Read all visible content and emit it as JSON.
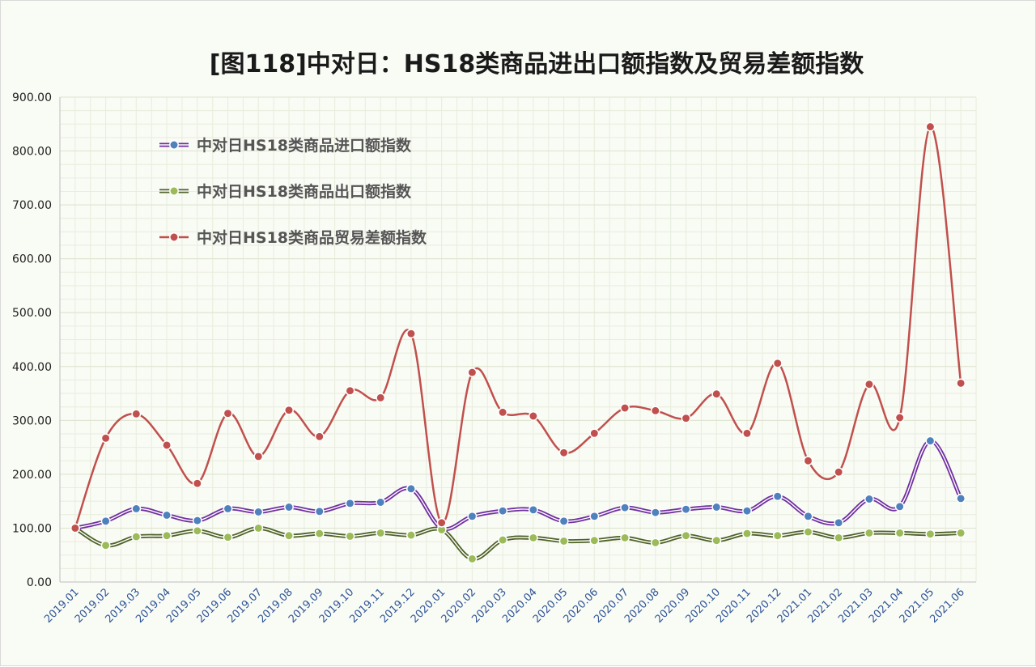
{
  "chart_data": {
    "type": "line",
    "title": "[图118]中对日：HS18类商品进出口额指数及贸易差额指数",
    "xlabel": "",
    "ylabel": "",
    "ylim": [
      0,
      900
    ],
    "yticks": [
      "0.00",
      "100.00",
      "200.00",
      "300.00",
      "400.00",
      "500.00",
      "600.00",
      "700.00",
      "800.00",
      "900.00"
    ],
    "grid": true,
    "legend_position": "top-left",
    "categories": [
      "2019.01",
      "2019.02",
      "2019.03",
      "2019.04",
      "2019.05",
      "2019.06",
      "2019.07",
      "2019.08",
      "2019.09",
      "2019.10",
      "2019.11",
      "2019.12",
      "2020.01",
      "2020.02",
      "2020.03",
      "2020.04",
      "2020.05",
      "2020.06",
      "2020.07",
      "2020.08",
      "2020.09",
      "2020.10",
      "2020.11",
      "2020.12",
      "2021.01",
      "2021.02",
      "2021.03",
      "2021.04",
      "2021.05",
      "2021.06"
    ],
    "series": [
      {
        "name": "中对日HS18类商品进口额指数",
        "color": "#7030a0",
        "marker_color": "#4f81bd",
        "values": [
          100,
          113,
          136,
          124,
          114,
          136,
          130,
          139,
          131,
          146,
          148,
          173,
          100,
          122,
          132,
          134,
          113,
          122,
          138,
          129,
          135,
          139,
          132,
          159,
          122,
          110,
          154,
          140,
          262,
          155
        ]
      },
      {
        "name": "中对日HS18类商品出口额指数",
        "color": "#4f6228",
        "marker_color": "#9bbb59",
        "values": [
          100,
          68,
          84,
          86,
          95,
          83,
          100,
          86,
          90,
          85,
          91,
          87,
          97,
          43,
          78,
          82,
          76,
          77,
          82,
          73,
          86,
          77,
          90,
          86,
          93,
          82,
          91,
          91,
          89,
          91
        ]
      },
      {
        "name": "中对日HS18类商品贸易差额指数",
        "color": "#c0504d",
        "marker_color": "#c0504d",
        "values": [
          100,
          267,
          312,
          254,
          183,
          313,
          233,
          319,
          270,
          355,
          342,
          461,
          110,
          389,
          315,
          308,
          240,
          276,
          323,
          318,
          304,
          349,
          276,
          406,
          225,
          204,
          367,
          305,
          845,
          369
        ]
      }
    ]
  }
}
